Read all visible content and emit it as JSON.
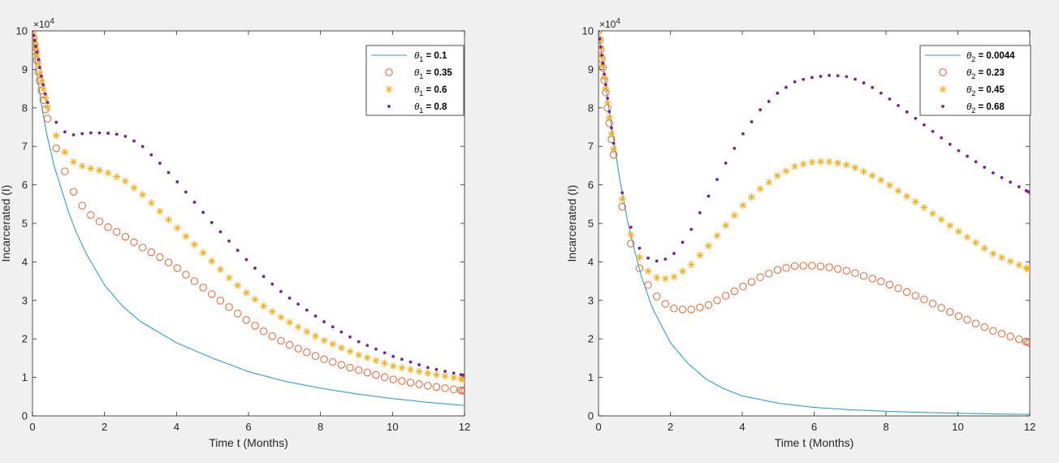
{
  "figure": {
    "background": "#f0f0f0"
  },
  "chart_data": [
    {
      "type": "line",
      "xlabel": "Time t (Months)",
      "ylabel": "Incarcerated (I)",
      "y_exponent": "×10^4",
      "y_exponent_base": "×10",
      "y_exponent_power": "4",
      "xlim": [
        0,
        12
      ],
      "ylim": [
        0,
        10
      ],
      "xticks": [
        0,
        2,
        4,
        6,
        8,
        10,
        12
      ],
      "yticks": [
        0,
        1,
        2,
        3,
        4,
        5,
        6,
        7,
        8,
        9,
        10
      ],
      "legend_position": "top-right",
      "series": [
        {
          "name": "θ_1 = 0.1",
          "symbol": "θ",
          "subscript": "1",
          "value_text": " = 0.1",
          "marker": "line",
          "color": "#2f9fd4",
          "x": [
            0,
            0.1,
            0.2,
            0.3,
            0.4,
            0.5,
            0.6,
            0.8,
            1.0,
            1.2,
            1.5,
            2,
            2.5,
            3,
            4,
            5,
            6,
            7,
            8,
            9,
            10,
            11,
            12
          ],
          "y": [
            10,
            9.0,
            8.4,
            7.8,
            7.3,
            6.9,
            6.5,
            5.9,
            5.3,
            4.8,
            4.2,
            3.4,
            2.85,
            2.45,
            1.9,
            1.5,
            1.15,
            0.9,
            0.72,
            0.57,
            0.45,
            0.35,
            0.27
          ]
        },
        {
          "name": "θ_1 = 0.35",
          "symbol": "θ",
          "subscript": "1",
          "value_text": " = 0.35",
          "marker": "circle",
          "color": "#e8612c",
          "x": [
            0,
            0.05,
            0.1,
            0.15,
            0.2,
            0.3,
            0.4,
            0.5,
            0.6,
            0.8,
            1.0,
            1.2,
            1.5,
            2,
            2.5,
            3,
            3.5,
            4,
            4.5,
            5,
            5.5,
            6,
            6.5,
            7,
            8,
            9,
            10,
            11,
            12
          ],
          "y": [
            10,
            9.7,
            9.4,
            9.0,
            8.7,
            8.2,
            7.8,
            7.4,
            7.1,
            6.6,
            6.1,
            5.7,
            5.3,
            4.95,
            4.7,
            4.4,
            4.15,
            3.85,
            3.5,
            3.15,
            2.8,
            2.45,
            2.15,
            1.9,
            1.5,
            1.2,
            0.95,
            0.78,
            0.65
          ]
        },
        {
          "name": "θ_1 = 0.6",
          "symbol": "θ",
          "subscript": "1",
          "value_text": " = 0.6",
          "marker": "star",
          "color": "#f0b020",
          "x": [
            0,
            0.05,
            0.1,
            0.15,
            0.2,
            0.3,
            0.4,
            0.5,
            0.6,
            0.8,
            1.0,
            1.2,
            1.5,
            2,
            2.5,
            3,
            3.5,
            4,
            4.5,
            5,
            5.5,
            6,
            6.5,
            7,
            8,
            9,
            10,
            11,
            12
          ],
          "y": [
            10,
            9.75,
            9.5,
            9.2,
            8.9,
            8.5,
            8.1,
            7.7,
            7.4,
            7.0,
            6.7,
            6.55,
            6.45,
            6.35,
            6.15,
            5.8,
            5.35,
            4.9,
            4.45,
            4.0,
            3.55,
            3.15,
            2.8,
            2.5,
            2.0,
            1.6,
            1.3,
            1.1,
            0.95
          ]
        },
        {
          "name": "θ_1 = 0.8",
          "symbol": "θ",
          "subscript": "1",
          "value_text": " = 0.8",
          "marker": "dot",
          "color": "#7b2190",
          "x": [
            0,
            0.05,
            0.1,
            0.15,
            0.2,
            0.3,
            0.4,
            0.5,
            0.6,
            0.8,
            1.0,
            1.2,
            1.5,
            2,
            2.5,
            3,
            3.5,
            4,
            4.5,
            5,
            5.5,
            6,
            6.5,
            7,
            8,
            9,
            10,
            11,
            12
          ],
          "y": [
            10,
            9.8,
            9.55,
            9.3,
            9.05,
            8.6,
            8.2,
            7.9,
            7.7,
            7.45,
            7.3,
            7.3,
            7.35,
            7.35,
            7.3,
            7.05,
            6.6,
            6.1,
            5.55,
            5.0,
            4.5,
            4.0,
            3.55,
            3.15,
            2.5,
            1.95,
            1.55,
            1.25,
            1.05
          ]
        }
      ]
    },
    {
      "type": "line",
      "xlabel": "Time t (Months)",
      "ylabel": "Incarcerated (I)",
      "y_exponent": "×10^4",
      "y_exponent_base": "×10",
      "y_exponent_power": "4",
      "xlim": [
        0,
        12
      ],
      "ylim": [
        0,
        10
      ],
      "xticks": [
        0,
        2,
        4,
        6,
        8,
        10,
        12
      ],
      "yticks": [
        0,
        1,
        2,
        3,
        4,
        5,
        6,
        7,
        8,
        9,
        10
      ],
      "legend_position": "top-right",
      "series": [
        {
          "name": "θ_2 = 0.0044",
          "symbol": "θ",
          "subscript": "2",
          "value_text": " = 0.0044",
          "marker": "line",
          "color": "#2f9fd4",
          "x": [
            0,
            0.1,
            0.2,
            0.3,
            0.4,
            0.5,
            0.6,
            0.8,
            1.0,
            1.2,
            1.5,
            2,
            2.5,
            3,
            3.5,
            4,
            5,
            6,
            7,
            8,
            9,
            10,
            11,
            12
          ],
          "y": [
            10,
            9.3,
            8.6,
            7.9,
            7.3,
            6.7,
            6.1,
            5.1,
            4.3,
            3.6,
            2.8,
            1.9,
            1.35,
            0.95,
            0.7,
            0.52,
            0.33,
            0.22,
            0.16,
            0.12,
            0.09,
            0.07,
            0.05,
            0.04
          ]
        },
        {
          "name": "θ_2 = 0.23",
          "symbol": "θ",
          "subscript": "2",
          "value_text": " = 0.23",
          "marker": "circle",
          "color": "#e8612c",
          "x": [
            0,
            0.1,
            0.2,
            0.3,
            0.4,
            0.5,
            0.6,
            0.8,
            1.0,
            1.2,
            1.5,
            2,
            2.5,
            3,
            3.5,
            4,
            4.5,
            5,
            5.5,
            6,
            6.5,
            7,
            7.5,
            8,
            9,
            10,
            11,
            12
          ],
          "y": [
            10,
            9.2,
            8.4,
            7.6,
            6.9,
            6.3,
            5.7,
            4.8,
            4.15,
            3.7,
            3.2,
            2.8,
            2.75,
            2.85,
            3.1,
            3.35,
            3.6,
            3.8,
            3.9,
            3.9,
            3.85,
            3.75,
            3.6,
            3.45,
            3.05,
            2.6,
            2.2,
            1.9
          ]
        },
        {
          "name": "θ_2 = 0.45",
          "symbol": "θ",
          "subscript": "2",
          "value_text": " = 0.45",
          "marker": "star",
          "color": "#f0b020",
          "x": [
            0,
            0.1,
            0.2,
            0.3,
            0.4,
            0.5,
            0.6,
            0.8,
            1.0,
            1.2,
            1.5,
            2,
            2.5,
            3,
            3.5,
            4,
            4.5,
            5,
            5.5,
            6,
            6.5,
            7,
            7.5,
            8,
            9,
            10,
            11,
            12
          ],
          "y": [
            10,
            9.25,
            8.5,
            7.75,
            7.05,
            6.45,
            5.9,
            5.0,
            4.4,
            4.0,
            3.6,
            3.55,
            3.85,
            4.35,
            4.9,
            5.45,
            5.9,
            6.25,
            6.5,
            6.6,
            6.6,
            6.5,
            6.3,
            6.05,
            5.45,
            4.8,
            4.2,
            3.8
          ]
        },
        {
          "name": "θ_2 = 0.68",
          "symbol": "θ",
          "subscript": "2",
          "value_text": " = 0.68",
          "marker": "dot",
          "color": "#7b2190",
          "x": [
            0,
            0.1,
            0.2,
            0.3,
            0.4,
            0.5,
            0.6,
            0.8,
            1.0,
            1.2,
            1.5,
            2,
            2.5,
            3,
            3.5,
            4,
            4.5,
            5,
            5.5,
            6,
            6.5,
            7,
            7.5,
            8,
            9,
            10,
            11,
            12
          ],
          "y": [
            10,
            9.3,
            8.6,
            7.9,
            7.2,
            6.6,
            6.05,
            5.2,
            4.6,
            4.25,
            4.0,
            4.1,
            4.7,
            5.6,
            6.5,
            7.3,
            7.95,
            8.4,
            8.7,
            8.8,
            8.85,
            8.8,
            8.6,
            8.3,
            7.6,
            6.9,
            6.3,
            5.8
          ]
        }
      ]
    }
  ]
}
